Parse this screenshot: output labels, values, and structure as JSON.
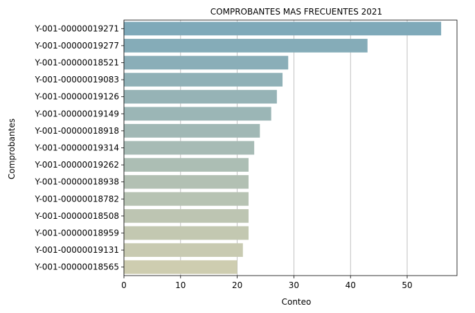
{
  "chart_data": {
    "type": "bar",
    "orientation": "horizontal",
    "title": "COMPROBANTES MAS FRECUENTES 2021",
    "xlabel": "Conteo",
    "ylabel": "Comprobantes",
    "xlim": [
      0,
      58.8
    ],
    "xticks": [
      0,
      10,
      20,
      30,
      40,
      50
    ],
    "grid": "vertical",
    "categories": [
      "Y-001-00000019271",
      "Y-001-00000019277",
      "Y-001-00000018521",
      "Y-001-00000019083",
      "Y-001-00000019126",
      "Y-001-00000019149",
      "Y-001-00000018918",
      "Y-001-00000019314",
      "Y-001-00000019262",
      "Y-001-00000018938",
      "Y-001-00000018782",
      "Y-001-00000018508",
      "Y-001-00000018959",
      "Y-001-00000019131",
      "Y-001-00000018565"
    ],
    "values": [
      56,
      43,
      29,
      28,
      27,
      26,
      24,
      23,
      22,
      22,
      22,
      22,
      22,
      21,
      20
    ],
    "colors": {
      "bar_start": "#7fa9b9",
      "bar_end": "#cecdb0",
      "grid": "#b0b0b0",
      "axis": "#000000"
    }
  }
}
